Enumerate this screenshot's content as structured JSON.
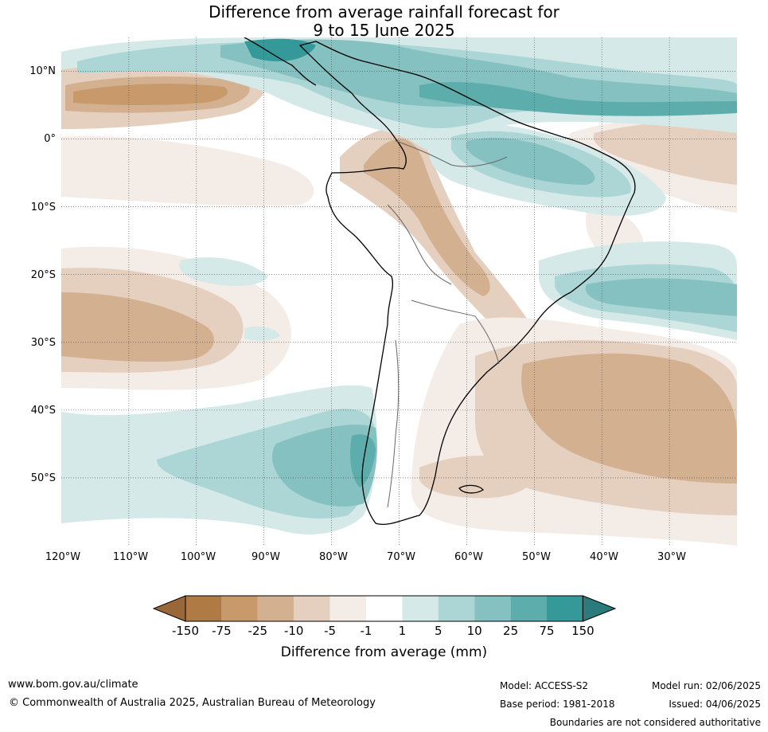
{
  "title": {
    "line1": "Difference from average rainfall forecast for",
    "line2": "9 to 15 June 2025"
  },
  "map": {
    "lat_labels": [
      "10°N",
      "0°",
      "10°S",
      "20°S",
      "30°S",
      "40°S",
      "50°S"
    ],
    "lon_labels": [
      "120°W",
      "110°W",
      "100°W",
      "90°W",
      "80°W",
      "70°W",
      "60°W",
      "50°W",
      "40°W",
      "30°W"
    ],
    "lon_range": [
      -120,
      -20
    ],
    "lat_range": [
      -60,
      15
    ],
    "colors": {
      "brown_strong": "#b07a45",
      "brown": "#c7996b",
      "brown_mid": "#d3b08f",
      "brown_light": "#e5d0bf",
      "brown_faint": "#f4ece6",
      "neutral": "#ffffff",
      "teal_faint": "#d5e9e8",
      "teal_light": "#acd5d5",
      "teal": "#86c1c1",
      "teal_mid": "#5eadad",
      "teal_strong": "#35999a",
      "teal_dark": "#2b7b7c"
    }
  },
  "colorbar": {
    "ticks": [
      "-150",
      "-75",
      "-25",
      "-10",
      "-5",
      "-1",
      "1",
      "5",
      "10",
      "25",
      "75",
      "150"
    ],
    "colors": [
      "#b07a45",
      "#c7996b",
      "#d3b08f",
      "#e5d0bf",
      "#f4ece6",
      "#ffffff",
      "#d5e9e8",
      "#acd5d5",
      "#86c1c1",
      "#5eadad",
      "#35999a"
    ],
    "under_color": "#9a6838",
    "over_color": "#2b7b7c",
    "label": "Difference from average (mm)"
  },
  "footer": {
    "website": "www.bom.gov.au/climate",
    "copyright": "© Commonwealth of Australia 2025, Australian Bureau of Meteorology",
    "model": "Model: ACCESS-S2",
    "base_period": "Base period: 1981-2018",
    "model_run": "Model run: 02/06/2025",
    "issued": "Issued: 04/06/2025",
    "disclaimer": "Boundaries are not considered authoritative"
  }
}
